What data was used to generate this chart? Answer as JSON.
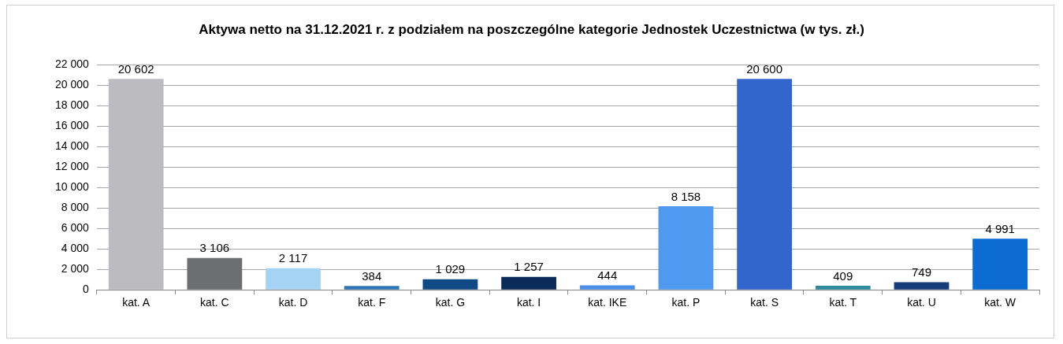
{
  "chart_data": {
    "type": "bar",
    "title": "Aktywa netto na 31.12.2021 r. z podziałem na poszczególne kategorie Jednostek Uczestnictwa (w tys. zł.)",
    "categories": [
      "kat. A",
      "kat. C",
      "kat. D",
      "kat. F",
      "kat. G",
      "kat. I",
      "kat. IKE",
      "kat. P",
      "kat. S",
      "kat. T",
      "kat. U",
      "kat. W"
    ],
    "values": [
      20602,
      3106,
      2117,
      384,
      1029,
      1257,
      444,
      8158,
      20600,
      409,
      749,
      4991
    ],
    "value_labels": [
      "20 602",
      "3 106",
      "2 117",
      "384",
      "1 029",
      "1 257",
      "444",
      "8 158",
      "20 600",
      "409",
      "749",
      "4 991"
    ],
    "colors": [
      "#bcbcc0",
      "#6d6e71",
      "#a5d3f3",
      "#2e75b6",
      "#0f4a84",
      "#0a2a5a",
      "#4a8ee8",
      "#4f9af0",
      "#3366cc",
      "#2f8a99",
      "#173c7a",
      "#0b6bd1"
    ],
    "ylim": [
      0,
      22000
    ],
    "yticks": [
      {
        "value": 0,
        "label": "0"
      },
      {
        "value": 2000,
        "label": "2 000"
      },
      {
        "value": 4000,
        "label": "4 000"
      },
      {
        "value": 6000,
        "label": "6 000"
      },
      {
        "value": 8000,
        "label": "8 000"
      },
      {
        "value": 10000,
        "label": "10 000"
      },
      {
        "value": 12000,
        "label": "12 000"
      },
      {
        "value": 14000,
        "label": "14 000"
      },
      {
        "value": 16000,
        "label": "16 000"
      },
      {
        "value": 18000,
        "label": "18 000"
      },
      {
        "value": 20000,
        "label": "20 000"
      },
      {
        "value": 22000,
        "label": "22 000"
      }
    ],
    "grid": "y",
    "legend": false
  }
}
